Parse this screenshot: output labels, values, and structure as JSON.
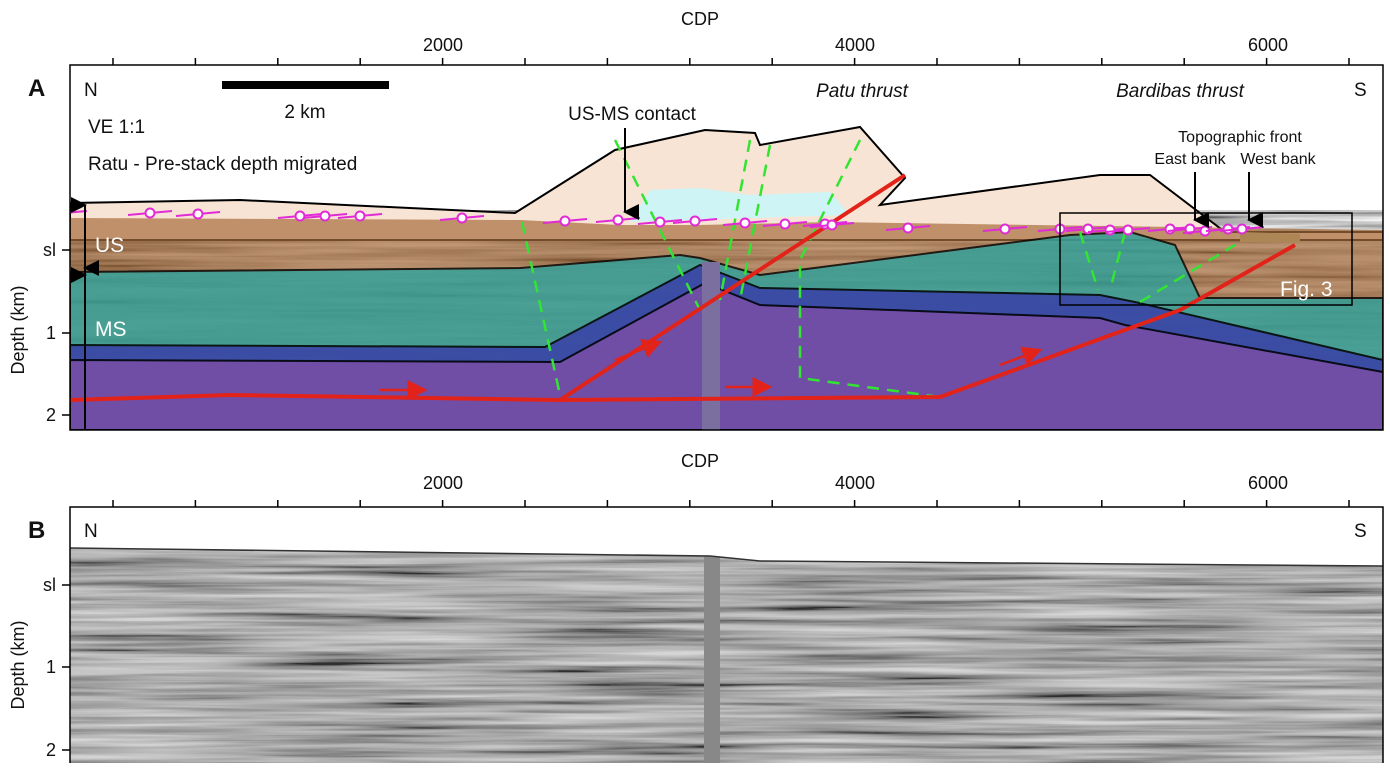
{
  "panel_a": {
    "label": "A",
    "x_axis": {
      "title": "CDP",
      "ticks": [
        2000,
        4000,
        6000
      ]
    },
    "y_axis": {
      "title": "Depth (km)",
      "ticks": [
        "sl",
        1,
        2
      ]
    },
    "north": "N",
    "south": "S",
    "scale_bar": "2 km",
    "exaggeration": "VE 1:1",
    "method": "Ratu - Pre-stack depth migrated",
    "contact": "US-MS contact",
    "patu": "Patu thrust",
    "bardibas": "Bardibas thrust",
    "front": "Topographic front",
    "east_bank": "East bank",
    "west_bank": "West bank",
    "upper_unit": "US",
    "middle_unit": "MS",
    "inset": "Fig. 3"
  },
  "panel_b": {
    "label": "B",
    "x_axis": {
      "title": "CDP",
      "ticks": [
        2000,
        4000,
        6000
      ]
    },
    "y_axis": {
      "title": "Depth (km)",
      "ticks": [
        "sl",
        1,
        2
      ]
    },
    "north": "N",
    "south": "S"
  }
}
